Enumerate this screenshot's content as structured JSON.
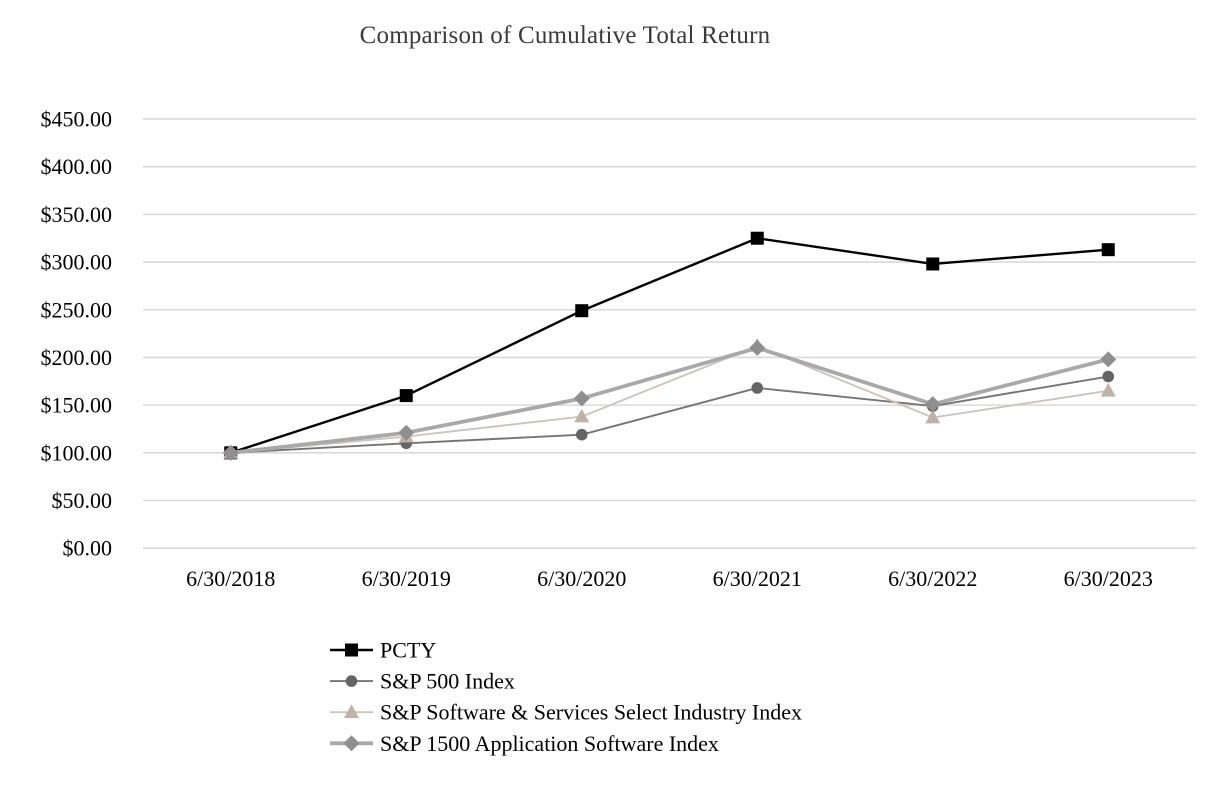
{
  "chart_data": {
    "type": "line",
    "title": "Comparison of Cumulative Total Return",
    "categories": [
      "6/30/2018",
      "6/30/2019",
      "6/30/2020",
      "6/30/2021",
      "6/30/2022",
      "6/30/2023"
    ],
    "y_ticks": [
      0,
      50,
      100,
      150,
      200,
      250,
      300,
      350,
      400,
      450
    ],
    "y_tick_labels": [
      "$0.00",
      "$50.00",
      "$100.00",
      "$150.00",
      "$200.00",
      "$250.00",
      "$300.00",
      "$350.00",
      "$400.00",
      "$450.00"
    ],
    "ylim": [
      0,
      450
    ],
    "grid": "horizontal",
    "gridline_color": "#d9d9d9",
    "axis_label_color": "#000000",
    "title_color": "#3a3a3a",
    "legend_position": "bottom-left",
    "series": [
      {
        "name": "PCTY",
        "marker": "square",
        "color": "#000000",
        "marker_color": "#000000",
        "line_width": 2.4,
        "values": [
          100,
          160,
          249,
          325,
          298,
          313
        ]
      },
      {
        "name": "S&P 500 Index",
        "marker": "circle",
        "color": "#757575",
        "marker_color": "#646464",
        "line_width": 1.9,
        "values": [
          100,
          110,
          119,
          168,
          149,
          180
        ]
      },
      {
        "name": "S&P Software & Services Select Industry Index",
        "marker": "triangle",
        "color": "#cdc5bd",
        "marker_color": "#bfb3a9",
        "line_width": 1.9,
        "values": [
          100,
          117,
          138,
          212,
          137,
          165
        ]
      },
      {
        "name": "S&P 1500 Application Software Index",
        "marker": "diamond",
        "color": "#a9a9a9",
        "marker_color": "#8f8f8f",
        "line_width": 3.8,
        "values": [
          100,
          121,
          157,
          210,
          151,
          198
        ]
      }
    ]
  }
}
